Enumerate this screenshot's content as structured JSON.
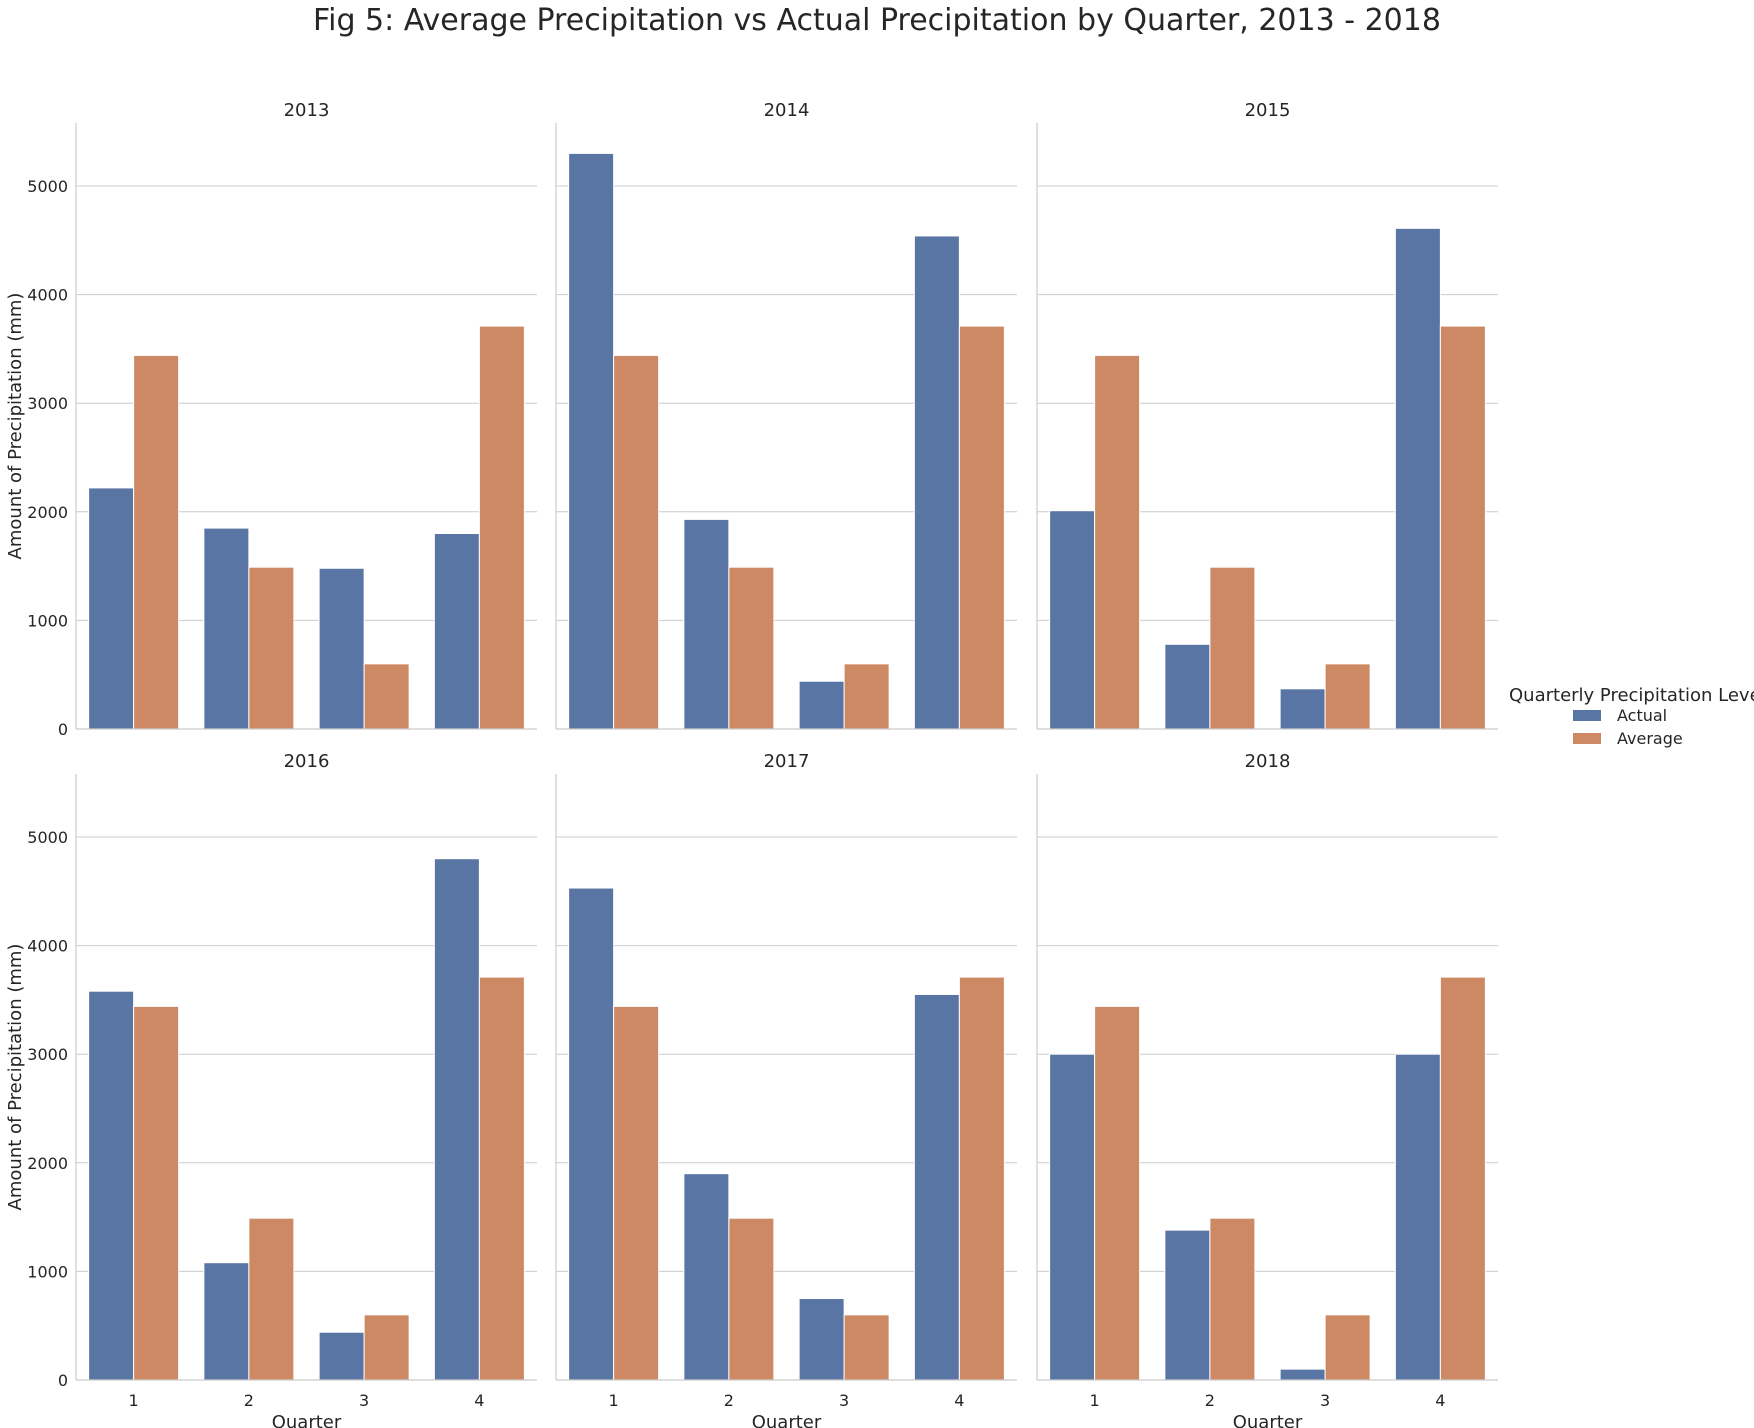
{
  "chart_data": {
    "type": "bar",
    "title": "Fig 5: Average Precipitation vs Actual Precipitation by Quarter, 2013 - 2018",
    "xlabel": "Quarter",
    "ylabel": "Amount of Precipitation (mm)",
    "categories": [
      "1",
      "2",
      "3",
      "4"
    ],
    "ylim": [
      0,
      5580
    ],
    "yticks": [
      0,
      1000,
      2000,
      3000,
      4000,
      5000
    ],
    "grid": "horizontal",
    "legend": {
      "title": "Quarterly Precipitation Levels",
      "placement": "center-right",
      "entries": [
        {
          "name": "Actual",
          "color": "#5975a4"
        },
        {
          "name": "Average",
          "color": "#cc8963"
        }
      ]
    },
    "panels": [
      {
        "title": "2013",
        "series": [
          {
            "name": "Actual",
            "values": [
              2220,
              1850,
              1480,
              1800
            ]
          },
          {
            "name": "Average",
            "values": [
              3440,
              1490,
              600,
              3710
            ]
          }
        ]
      },
      {
        "title": "2014",
        "series": [
          {
            "name": "Actual",
            "values": [
              5300,
              1930,
              440,
              4540
            ]
          },
          {
            "name": "Average",
            "values": [
              3440,
              1490,
              600,
              3710
            ]
          }
        ]
      },
      {
        "title": "2015",
        "series": [
          {
            "name": "Actual",
            "values": [
              2010,
              780,
              370,
              4610
            ]
          },
          {
            "name": "Average",
            "values": [
              3440,
              1490,
              600,
              3710
            ]
          }
        ]
      },
      {
        "title": "2016",
        "series": [
          {
            "name": "Actual",
            "values": [
              3580,
              1080,
              440,
              4800
            ]
          },
          {
            "name": "Average",
            "values": [
              3440,
              1490,
              600,
              3710
            ]
          }
        ]
      },
      {
        "title": "2017",
        "series": [
          {
            "name": "Actual",
            "values": [
              4530,
              1900,
              750,
              3550
            ]
          },
          {
            "name": "Average",
            "values": [
              3440,
              1490,
              600,
              3710
            ]
          }
        ]
      },
      {
        "title": "2018",
        "series": [
          {
            "name": "Actual",
            "values": [
              3000,
              1380,
              100,
              3000
            ]
          },
          {
            "name": "Average",
            "values": [
              3440,
              1490,
              600,
              3710
            ]
          }
        ]
      }
    ]
  }
}
